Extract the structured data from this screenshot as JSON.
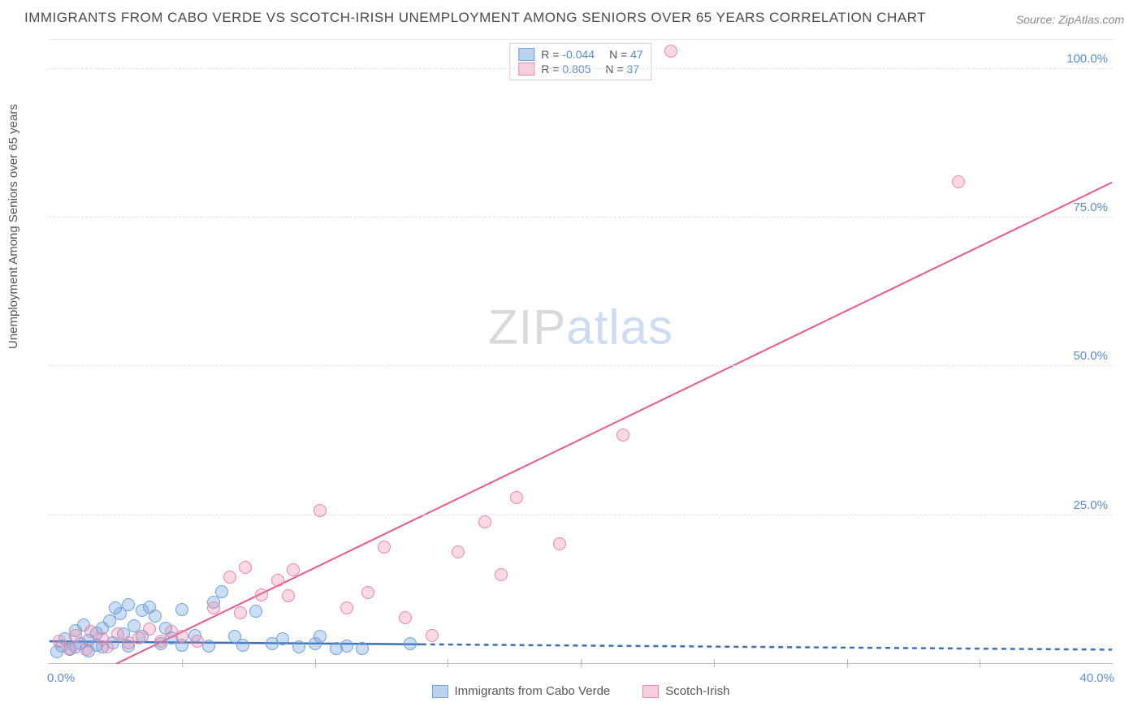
{
  "title": "IMMIGRANTS FROM CABO VERDE VS SCOTCH-IRISH UNEMPLOYMENT AMONG SENIORS OVER 65 YEARS CORRELATION CHART",
  "source_label": "Source: ",
  "source_value": "ZipAtlas.com",
  "y_axis_label": "Unemployment Among Seniors over 65 years",
  "watermark_a": "ZIP",
  "watermark_b": "atlas",
  "chart": {
    "type": "scatter",
    "xlim": [
      0,
      40
    ],
    "ylim": [
      0,
      105
    ],
    "x_ticks": [
      0,
      40
    ],
    "x_tick_labels": [
      "0.0%",
      "40.0%"
    ],
    "x_minor_ticks": [
      5,
      10,
      15,
      20,
      25,
      30,
      35
    ],
    "y_ticks": [
      25,
      50,
      75,
      100
    ],
    "y_tick_labels": [
      "25.0%",
      "50.0%",
      "75.0%",
      "100.0%"
    ],
    "background_color": "#ffffff",
    "grid_color": "#e2e2e2",
    "axis_label_color": "#5b8bc9",
    "title_fontsize": 17,
    "label_fontsize": 15,
    "series": [
      {
        "name": "Immigrants from Cabo Verde",
        "r": -0.044,
        "n": 47,
        "color_fill": "rgba(110,160,220,0.35)",
        "color_stroke": "#6ea0dc",
        "swatch_fill": "#bcd3ef",
        "swatch_stroke": "#6ea0dc",
        "marker_radius": 8,
        "line": {
          "solid": {
            "x1": 0,
            "y1": 3.8,
            "x2": 14,
            "y2": 3.3
          },
          "dashed": {
            "x1": 14,
            "y1": 3.3,
            "x2": 40,
            "y2": 2.4
          },
          "color": "#3d6fb5",
          "width": 2.5
        },
        "points": [
          [
            0.3,
            2.0
          ],
          [
            0.5,
            3.0
          ],
          [
            0.6,
            4.2
          ],
          [
            0.8,
            2.4
          ],
          [
            1.0,
            5.6
          ],
          [
            1.0,
            2.8
          ],
          [
            1.2,
            3.4
          ],
          [
            1.3,
            6.6
          ],
          [
            1.5,
            4.0
          ],
          [
            1.5,
            2.2
          ],
          [
            1.8,
            3.2
          ],
          [
            1.8,
            5.2
          ],
          [
            2.0,
            6.0
          ],
          [
            2.0,
            2.8
          ],
          [
            2.3,
            7.2
          ],
          [
            2.4,
            3.6
          ],
          [
            2.5,
            9.4
          ],
          [
            2.7,
            8.4
          ],
          [
            2.8,
            5.0
          ],
          [
            3.0,
            3.0
          ],
          [
            3.0,
            10.0
          ],
          [
            3.2,
            6.4
          ],
          [
            3.5,
            9.0
          ],
          [
            3.5,
            4.6
          ],
          [
            3.8,
            9.6
          ],
          [
            4.0,
            8.0
          ],
          [
            4.2,
            3.4
          ],
          [
            4.4,
            6.0
          ],
          [
            4.6,
            4.4
          ],
          [
            5.0,
            9.2
          ],
          [
            5.0,
            3.2
          ],
          [
            5.5,
            4.8
          ],
          [
            6.0,
            3.0
          ],
          [
            6.2,
            10.4
          ],
          [
            6.5,
            12.2
          ],
          [
            7.0,
            4.6
          ],
          [
            7.3,
            3.2
          ],
          [
            7.8,
            8.8
          ],
          [
            8.4,
            3.4
          ],
          [
            8.8,
            4.2
          ],
          [
            9.4,
            2.8
          ],
          [
            10.0,
            3.4
          ],
          [
            10.2,
            4.6
          ],
          [
            10.8,
            2.6
          ],
          [
            11.2,
            3.0
          ],
          [
            11.8,
            2.6
          ],
          [
            13.6,
            3.4
          ]
        ]
      },
      {
        "name": "Scotch-Irish",
        "r": 0.805,
        "n": 37,
        "color_fill": "rgba(235,130,165,0.30)",
        "color_stroke": "#e985a8",
        "swatch_fill": "#f6cfdc",
        "swatch_stroke": "#e985a8",
        "marker_radius": 8,
        "line": {
          "solid": {
            "x1": 2.5,
            "y1": 0,
            "x2": 40,
            "y2": 81
          },
          "dashed": null,
          "color": "#e65a8a",
          "width": 2
        },
        "points": [
          [
            0.4,
            3.8
          ],
          [
            0.8,
            2.6
          ],
          [
            1.0,
            4.8
          ],
          [
            1.4,
            2.4
          ],
          [
            1.6,
            5.4
          ],
          [
            2.0,
            4.2
          ],
          [
            2.2,
            2.8
          ],
          [
            2.6,
            5.0
          ],
          [
            3.0,
            3.6
          ],
          [
            3.4,
            4.4
          ],
          [
            3.8,
            5.8
          ],
          [
            4.2,
            3.8
          ],
          [
            4.6,
            5.4
          ],
          [
            5.0,
            4.6
          ],
          [
            5.6,
            3.8
          ],
          [
            6.2,
            9.4
          ],
          [
            6.8,
            14.6
          ],
          [
            7.2,
            8.6
          ],
          [
            7.4,
            16.2
          ],
          [
            8.0,
            11.6
          ],
          [
            8.6,
            14.0
          ],
          [
            9.0,
            11.4
          ],
          [
            9.2,
            15.8
          ],
          [
            10.2,
            25.8
          ],
          [
            11.2,
            9.4
          ],
          [
            12.0,
            12.0
          ],
          [
            12.6,
            19.6
          ],
          [
            13.4,
            7.8
          ],
          [
            14.4,
            4.8
          ],
          [
            15.4,
            18.8
          ],
          [
            16.4,
            23.8
          ],
          [
            17.0,
            15.0
          ],
          [
            17.6,
            28.0
          ],
          [
            19.2,
            20.2
          ],
          [
            21.6,
            38.4
          ],
          [
            23.4,
            103.0
          ],
          [
            34.2,
            81.0
          ]
        ]
      }
    ]
  },
  "legend_top": {
    "rows": [
      {
        "swatch_fill": "#bcd3ef",
        "swatch_stroke": "#6ea0dc",
        "r_label": "R =",
        "r_val": "-0.044",
        "n_label": "N =",
        "n_val": "47"
      },
      {
        "swatch_fill": "#f6cfdc",
        "swatch_stroke": "#e985a8",
        "r_label": "R =",
        "r_val": "0.805",
        "n_label": "N =",
        "n_val": "37"
      }
    ]
  },
  "legend_bottom": {
    "items": [
      {
        "swatch_fill": "#bcd3ef",
        "swatch_stroke": "#6ea0dc",
        "label": "Immigrants from Cabo Verde"
      },
      {
        "swatch_fill": "#f6cfdc",
        "swatch_stroke": "#e985a8",
        "label": "Scotch-Irish"
      }
    ]
  }
}
